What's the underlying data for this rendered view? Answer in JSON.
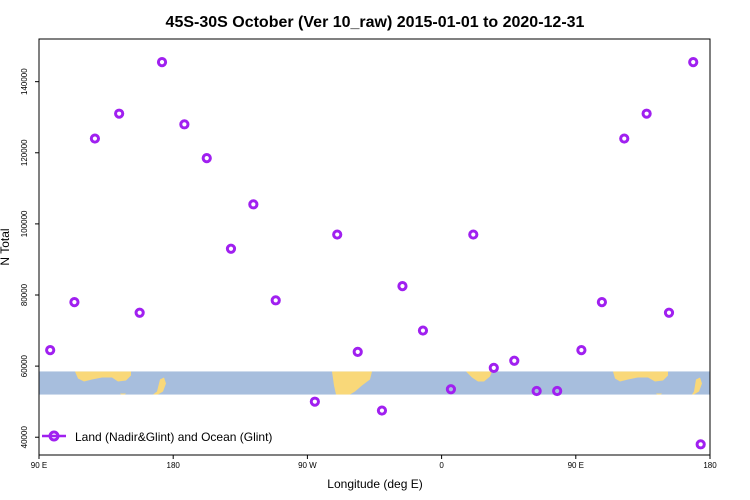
{
  "chart_data": {
    "type": "scatter",
    "title": "45S-30S October (Ver 10_raw)   2015-01-01 to 2020-12-31",
    "xlabel": "Longitude (deg E)",
    "ylabel": "N Total",
    "xlim": [
      90,
      450
    ],
    "ylim": [
      35000,
      152000
    ],
    "x_ticks": [
      {
        "value": 90,
        "label": "90 E"
      },
      {
        "value": 162,
        "label": "180"
      },
      {
        "value": 234,
        "label": "90 W"
      },
      {
        "value": 306,
        "label": "0"
      },
      {
        "value": 378,
        "label": "90 E"
      },
      {
        "value": 450,
        "label": "180"
      }
    ],
    "y_ticks": [
      {
        "value": 40000,
        "label": "40000"
      },
      {
        "value": 60000,
        "label": "60000"
      },
      {
        "value": 80000,
        "label": "80000"
      },
      {
        "value": 100000,
        "label": "100000"
      },
      {
        "value": 120000,
        "label": "120000"
      },
      {
        "value": 140000,
        "label": "140000"
      }
    ],
    "series": [
      {
        "name": "Land (Nadir&Glint) and Ocean (Glint)",
        "color": "#a020f0",
        "x": [
          96,
          109,
          120,
          133,
          144,
          156,
          168,
          180,
          193,
          205,
          217,
          238,
          250,
          261,
          274,
          285,
          296,
          311,
          323,
          334,
          345,
          357,
          368,
          381,
          392,
          404,
          416,
          428,
          441,
          445
        ],
        "y": [
          64500,
          78000,
          124000,
          131000,
          75000,
          145500,
          128000,
          118500,
          93000,
          105500,
          78500,
          50000,
          97000,
          64000,
          47500,
          82500,
          70000,
          53500,
          97000,
          59500,
          61500,
          53000,
          53000,
          64500,
          78000,
          124000,
          131000,
          75000,
          145500,
          38000
        ]
      }
    ],
    "legend": {
      "position": "bottom-left",
      "label": "Land (Nadir&Glint) and Ocean (Glint)"
    },
    "grid": false,
    "map_band": {
      "y_top": 58500,
      "y_bottom": 52000,
      "ocean_color": "#a7bedd",
      "land_color": "#f9d879"
    }
  }
}
